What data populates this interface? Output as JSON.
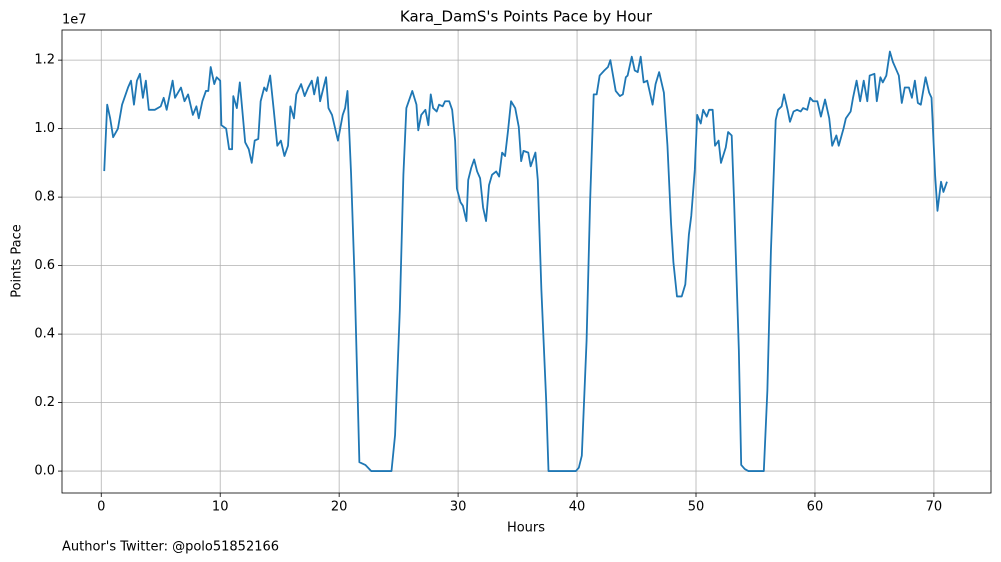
{
  "chart_data": {
    "type": "line",
    "title": "Kara_DamS's Points Pace by Hour",
    "x_label": "Hours",
    "y_label": "Points Pace",
    "y_offset_label": "1e7",
    "footer": "Author's Twitter: @polo51852166",
    "grid": true,
    "xlim": [
      -3.3,
      74.8
    ],
    "xticks": [
      0,
      10,
      20,
      30,
      40,
      50,
      60,
      70
    ],
    "ylim": [
      -0.064,
      1.288
    ],
    "yticks": [
      {
        "value": 0,
        "label": "0.0"
      },
      0.2,
      0.4,
      0.6,
      0.8,
      {
        "value": 1,
        "label": "1.0"
      },
      1.2
    ],
    "x": [
      0.25,
      0.5,
      0.75,
      1.0,
      1.4,
      1.75,
      2.25,
      2.5,
      2.75,
      3.0,
      3.25,
      3.5,
      3.75,
      4.0,
      4.5,
      5.0,
      5.25,
      5.5,
      6.0,
      6.2,
      6.7,
      7.0,
      7.3,
      7.7,
      8.0,
      8.2,
      8.5,
      8.8,
      9.0,
      9.2,
      9.5,
      9.7,
      10.0,
      10.1,
      10.5,
      10.75,
      11.0,
      11.1,
      11.4,
      11.65,
      12.1,
      12.4,
      12.65,
      12.9,
      13.2,
      13.4,
      13.7,
      13.9,
      14.2,
      14.5,
      14.8,
      15.1,
      15.4,
      15.7,
      15.9,
      16.2,
      16.4,
      16.8,
      17.1,
      17.4,
      17.7,
      17.9,
      18.2,
      18.4,
      18.9,
      19.1,
      19.4,
      19.9,
      20.3,
      20.5,
      20.7,
      21.0,
      21.3,
      21.5,
      21.7,
      22.2,
      22.7,
      24.4,
      24.7,
      25.1,
      25.4,
      25.65,
      26.15,
      26.5,
      26.65,
      26.9,
      27.25,
      27.5,
      27.7,
      27.9,
      28.2,
      28.4,
      28.7,
      28.9,
      29.25,
      29.5,
      29.75,
      29.9,
      30.2,
      30.4,
      30.7,
      30.85,
      31.1,
      31.35,
      31.6,
      31.85,
      32.1,
      32.35,
      32.6,
      32.85,
      33.2,
      33.45,
      33.7,
      33.95,
      34.2,
      34.45,
      34.8,
      35.1,
      35.3,
      35.5,
      35.9,
      36.1,
      36.5,
      36.7,
      37.0,
      37.4,
      37.6,
      39.9,
      40.15,
      40.4,
      40.8,
      41.1,
      41.4,
      41.65,
      41.9,
      42.3,
      42.6,
      42.8,
      43.25,
      43.6,
      43.85,
      44.1,
      44.25,
      44.6,
      44.85,
      45.1,
      45.35,
      45.6,
      45.9,
      46.35,
      46.6,
      46.9,
      47.3,
      47.6,
      47.9,
      48.1,
      48.4,
      48.8,
      49.1,
      49.4,
      49.6,
      49.9,
      50.1,
      50.4,
      50.6,
      50.9,
      51.1,
      51.4,
      51.6,
      51.9,
      52.1,
      52.5,
      52.7,
      53.0,
      53.2,
      53.6,
      53.8,
      54.1,
      54.4,
      55.7,
      56.0,
      56.3,
      56.7,
      56.9,
      57.2,
      57.4,
      57.7,
      57.9,
      58.2,
      58.5,
      58.8,
      59.0,
      59.35,
      59.6,
      59.85,
      60.2,
      60.5,
      60.85,
      61.2,
      61.45,
      61.8,
      62.0,
      62.4,
      62.6,
      63.0,
      63.2,
      63.5,
      63.8,
      64.1,
      64.4,
      64.6,
      65.0,
      65.2,
      65.5,
      65.7,
      66.0,
      66.3,
      66.55,
      66.8,
      67.05,
      67.3,
      67.55,
      67.9,
      68.15,
      68.4,
      68.65,
      68.9,
      69.3,
      69.6,
      69.8,
      70.1,
      70.3,
      70.6,
      70.8,
      71.1
    ],
    "series": [
      {
        "name": "Points Pace",
        "color": "#1f77b4",
        "values": [
          0.876,
          1.07,
          1.03,
          0.975,
          1.0,
          1.07,
          1.12,
          1.14,
          1.07,
          1.14,
          1.16,
          1.09,
          1.14,
          1.055,
          1.055,
          1.065,
          1.09,
          1.055,
          1.14,
          1.09,
          1.12,
          1.08,
          1.1,
          1.04,
          1.065,
          1.03,
          1.08,
          1.11,
          1.11,
          1.18,
          1.13,
          1.15,
          1.14,
          1.01,
          1.0,
          0.94,
          0.94,
          1.095,
          1.06,
          1.135,
          0.96,
          0.94,
          0.9,
          0.965,
          0.97,
          1.08,
          1.12,
          1.11,
          1.155,
          1.055,
          0.95,
          0.965,
          0.92,
          0.95,
          1.065,
          1.03,
          1.1,
          1.13,
          1.095,
          1.12,
          1.14,
          1.1,
          1.15,
          1.08,
          1.15,
          1.06,
          1.04,
          0.965,
          1.04,
          1.06,
          1.11,
          0.87,
          0.56,
          0.295,
          0.026,
          0.018,
          0.0,
          0.0,
          0.105,
          0.47,
          0.865,
          1.06,
          1.11,
          1.07,
          0.995,
          1.04,
          1.055,
          1.01,
          1.1,
          1.06,
          1.05,
          1.07,
          1.065,
          1.08,
          1.08,
          1.055,
          0.965,
          0.825,
          0.785,
          0.775,
          0.73,
          0.85,
          0.885,
          0.91,
          0.875,
          0.855,
          0.77,
          0.73,
          0.835,
          0.865,
          0.875,
          0.86,
          0.93,
          0.92,
          0.995,
          1.08,
          1.06,
          1.005,
          0.905,
          0.935,
          0.93,
          0.89,
          0.93,
          0.85,
          0.53,
          0.21,
          0.0,
          0.0,
          0.01,
          0.045,
          0.38,
          0.79,
          1.1,
          1.1,
          1.155,
          1.17,
          1.18,
          1.2,
          1.11,
          1.095,
          1.1,
          1.15,
          1.155,
          1.21,
          1.17,
          1.165,
          1.21,
          1.135,
          1.14,
          1.07,
          1.13,
          1.165,
          1.105,
          0.95,
          0.725,
          0.61,
          0.51,
          0.51,
          0.545,
          0.69,
          0.745,
          0.88,
          1.04,
          1.015,
          1.055,
          1.035,
          1.055,
          1.055,
          0.95,
          0.965,
          0.9,
          0.945,
          0.99,
          0.98,
          0.79,
          0.355,
          0.018,
          0.006,
          0.0,
          0.0,
          0.235,
          0.645,
          1.025,
          1.055,
          1.065,
          1.1,
          1.055,
          1.02,
          1.05,
          1.055,
          1.05,
          1.06,
          1.055,
          1.09,
          1.08,
          1.08,
          1.035,
          1.085,
          1.03,
          0.95,
          0.98,
          0.95,
          1.0,
          1.03,
          1.05,
          1.09,
          1.14,
          1.08,
          1.14,
          1.08,
          1.155,
          1.16,
          1.08,
          1.15,
          1.135,
          1.155,
          1.225,
          1.195,
          1.175,
          1.155,
          1.075,
          1.12,
          1.12,
          1.09,
          1.14,
          1.075,
          1.07,
          1.15,
          1.105,
          1.09,
          0.865,
          0.76,
          0.845,
          0.815,
          0.845
        ]
      }
    ]
  }
}
